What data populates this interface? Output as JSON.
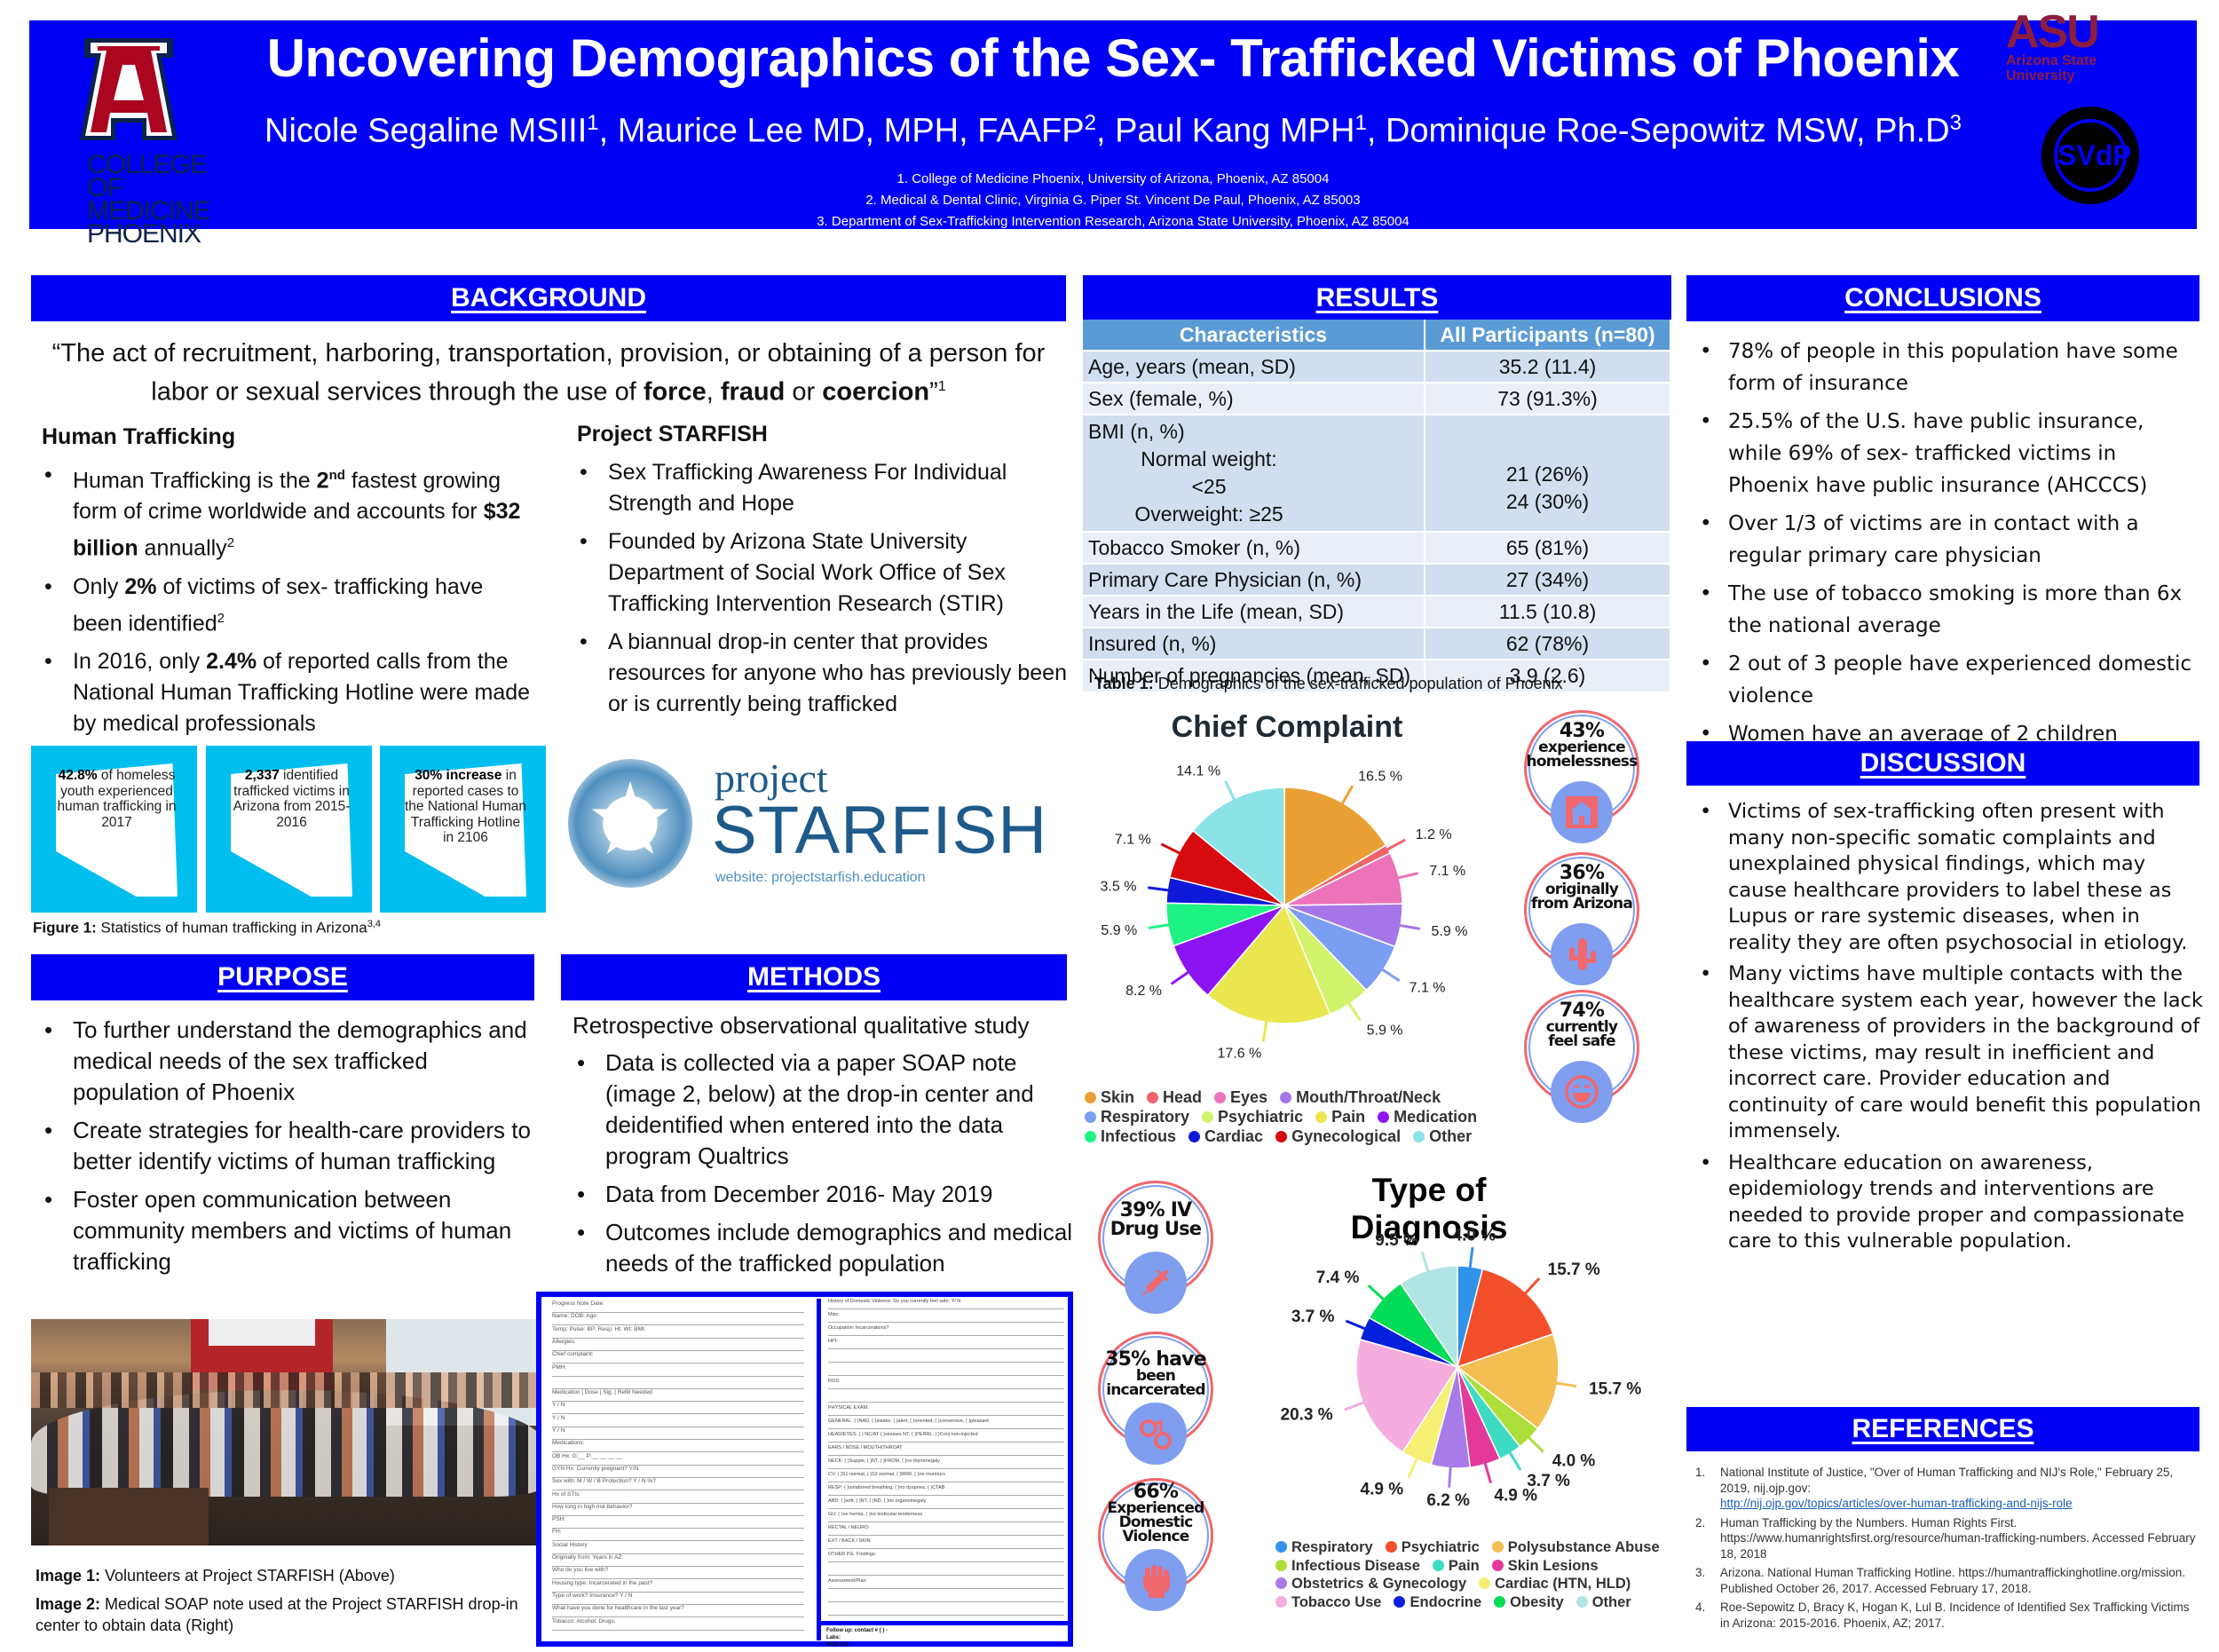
{
  "header": {
    "title": "Uncovering Demographics of the Sex- Trafficked Victims of Phoenix",
    "authors": [
      {
        "name": "Nicole Segaline MSIII",
        "sup": "1"
      },
      {
        "name": "Maurice Lee MD, MPH, FAAFP",
        "sup": "2"
      },
      {
        "name": "Paul Kang MPH",
        "sup": "1"
      },
      {
        "name": "Dominique Roe-Sepowitz MSW, Ph.D",
        "sup": "3"
      }
    ],
    "affiliations": [
      "1. College of Medicine Phoenix, University of Arizona, Phoenix, AZ 85004",
      "2. Medical & Dental Clinic, Virginia G. Piper St. Vincent De Paul, Phoenix, AZ 85003",
      "3. Department of Sex-Trafficking Intervention Research, Arizona  State University, Phoenix, AZ 85004"
    ],
    "logos": {
      "ua_letter": "A",
      "ua_college": [
        "COLLEGE",
        "OF MEDICINE",
        "PHOENIX"
      ],
      "asu_word": "ASU",
      "asu_name": [
        "Arizona State",
        "University"
      ],
      "svdp": "SVdP"
    }
  },
  "background": {
    "heading": "BACKGROUND",
    "quote_pre": "“The act of recruitment, harboring, transportation, provision, or obtaining of a person for labor or sexual services through the use of ",
    "quote_b1": "force",
    "quote_mid1": ", ",
    "quote_b2": "fraud",
    "quote_mid2": " or ",
    "quote_b3": "coercion",
    "quote_end": "”",
    "quote_sup": "1",
    "human_trafficking": {
      "title": "Human Trafficking",
      "items": [
        {
          "pre": "Human Trafficking is the ",
          "bold": "2",
          "sup": "nd",
          "post": " fastest growing form of crime worldwide and accounts for ",
          "bold2": "$32 billion",
          "post2": " annually",
          "sup2": "2"
        },
        {
          "pre": "Only ",
          "bold": "2%",
          "post": " of victims of sex- trafficking have been identified",
          "sup2": "2"
        },
        {
          "pre": "In 2016, only ",
          "bold": "2.4%",
          "post": " of reported calls from the National Human Trafficking Hotline were made by medical professionals"
        }
      ]
    },
    "project_starfish": {
      "title": "Project STARFISH",
      "items": [
        "Sex Trafficking Awareness For Individual Strength and Hope",
        "Founded by Arizona State University Department of Social Work Office of Sex Trafficking Intervention Research (STIR)",
        "A biannual drop-in center that provides resources for anyone who has previously been or is currently being trafficked"
      ]
    },
    "tiles": [
      {
        "bold": "42.8%",
        "text": " of homeless youth experienced human trafficking in 2017"
      },
      {
        "bold": "2,337",
        "text": " identified trafficked victims in Arizona from 2015-2016"
      },
      {
        "bold": "30% increase",
        "text": " in reported cases to the National Human Trafficking Hotline in 2106"
      }
    ],
    "figure_caption_bold": "Figure 1:",
    "figure_caption": " Statistics of human trafficking in Arizona",
    "figure_caption_sup": "3,4",
    "starfish_logo": {
      "project": "project",
      "starfish": "STARFISH",
      "website": "website: projectstarfish.education"
    }
  },
  "purpose": {
    "heading": "PURPOSE",
    "items": [
      "To further understand the demographics and medical needs of the sex trafficked population of Phoenix",
      "Create strategies for health-care providers to better identify victims of human trafficking",
      "Foster open communication between community members and victims of human trafficking"
    ]
  },
  "methods": {
    "heading": "METHODS",
    "intro": "Retrospective observational qualitative study",
    "items": [
      "Data is collected via a paper SOAP note (image 2, below) at the drop-in center and deidentified when entered into the data program Qualtrics",
      "Data from December 2016- May 2019",
      "Outcomes include demographics and medical needs of the trafficked population"
    ]
  },
  "images": {
    "cap1_bold": "Image 1:",
    "cap1": " Volunteers at Project STARFISH (Above)",
    "cap2_bold": "Image 2:",
    "cap2": " Medical SOAP note used at the Project STARFISH drop-in center to obtain data (Right)"
  },
  "soap_note": {
    "left_fields": [
      "Progress Note                    Date:",
      "Name:                                DOB:          Age:",
      "Temp:    Pulse:    BP:      Resp:     Ht:     Wt:     BMI:",
      "Allergies:",
      "Chief complaint:",
      "PMH:",
      "",
      "Medication | Dose | Sig. | Refill Needed",
      "Y / N",
      "Y / N",
      "Y / N",
      "Medications:",
      "OB Hx:  G:__ P:__ __ __ __",
      "GYN Hx:                          Currently pregnant? Y/N",
      "Sex with: M / W / B         Protection? Y / N      %?",
      "Hx of STIs:",
      "How long in high risk behavior?",
      "PSH:",
      "FH:",
      "Social History",
      "Originally from:                          Years in AZ:",
      "Who do you live with?",
      "Housing type:               Incarcerated in the past?",
      "Type of work?                Insurance? Y / N",
      "What have you done for healthcare in the last year?",
      "Tobacco:           Alcohol:              Drugs:"
    ],
    "right_fields": [
      "History of Domestic Violence:          Do you currently feel safe: Y/ N",
      "Misc:",
      "Occupation:                  Incarcerations?",
      "HPI:",
      "",
      "",
      "ROS:",
      "",
      "PHYSICAL EXAM:",
      "GENERAL: ( )NAD, ( )awake, ( )alert, ( )oriented, ( )conversive, ( )pleasant",
      "HEAD/EYES: ( ) NC/AT ( )sinuses NT, ( )PERRL, ( )Conj non-injected",
      "EARS / NOSE / MOUTH/THROAT",
      "NECK: ( )Supple, ( )NT, ( )FROM, ( )no thyromegaly",
      "CV: ( )S1 normal, ( )S2 normal, ( )RRR, ( )no murmurs",
      "RESP: ( )unlabored breathing, ( )no dyspnea, ( )CTAB",
      "ABD: ( )soft, ( )NT, ( )ND, ( )no organomegaly",
      "GU: ( )no hernia, ( )no testicular tenderness",
      "RECTAL / NEURO",
      "EXT / BACK / SKIN",
      "OTHER P.E. Findings:",
      "",
      "Assessment/Plan:",
      "",
      ""
    ],
    "follow_up": "Follow up:                                   contact # (     )     -",
    "labs": "Labs:",
    "wish_list": "Wish list:"
  },
  "results": {
    "heading": "RESULTS",
    "table": {
      "headers": [
        "Characteristics",
        "All Participants (n=80)"
      ],
      "rows": [
        {
          "label": "Age, years (mean, SD)",
          "value": "35.2 (11.4)"
        },
        {
          "label": "Sex (female, %)",
          "value": "73 (91.3%)"
        },
        {
          "label": "BMI (n, %)",
          "sub": [
            {
              "label": "Normal weight: <25",
              "value": "21 (26%)"
            },
            {
              "label": "Overweight: ≥25",
              "value": "24 (30%)"
            }
          ]
        },
        {
          "label": "Tobacco Smoker (n, %)",
          "value": "65 (81%)"
        },
        {
          "label": "Primary Care Physician (n, %)",
          "value": "27 (34%)"
        },
        {
          "label": "Years in the Life (mean, SD)",
          "value": "11.5 (10.8)"
        },
        {
          "label": "Insured (n, %)",
          "value": "62 (78%)"
        },
        {
          "label": "Number of pregnancies (mean, SD)",
          "value": "3.9 (2.6)"
        }
      ]
    },
    "table_caption_bold": "Table 1:",
    "table_caption": " Demographics of the sex-trafficked population of Phoenix",
    "badges_right": [
      {
        "pct": "43%",
        "text": [
          "experience",
          "homelessness"
        ],
        "icon": "house-icon"
      },
      {
        "pct": "36%",
        "text": [
          "originally",
          "from Arizona"
        ],
        "icon": "cactus-icon"
      },
      {
        "pct": "74%",
        "text": [
          "currently",
          "feel safe"
        ],
        "icon": "smiley-icon"
      }
    ],
    "badges_left": [
      {
        "pct": "39% IV",
        "text": [
          "Drug Use"
        ],
        "icon": "syringe-icon"
      },
      {
        "pct": "35% have",
        "text": [
          "been",
          "incarcerated"
        ],
        "icon": "handcuffs-icon"
      },
      {
        "pct": "66%",
        "text": [
          "Experienced",
          "Domestic",
          "Violence"
        ],
        "icon": "fist-icon"
      }
    ]
  },
  "chart_data": [
    {
      "type": "pie",
      "title": "Chief Complaint",
      "categories": [
        "Skin",
        "Head",
        "Eyes",
        "Mouth/Throat/Neck",
        "Respiratory",
        "Psychiatric",
        "Pain",
        "Medication",
        "Infectious",
        "Cardiac",
        "Gynecological",
        "Other"
      ],
      "values": [
        16.5,
        1.2,
        7.1,
        5.9,
        7.1,
        5.9,
        17.6,
        8.2,
        5.9,
        3.5,
        7.1,
        14.1
      ],
      "colors": [
        "#eba035",
        "#f0636a",
        "#ec72ba",
        "#a676e8",
        "#7c9ef2",
        "#d2f36c",
        "#ebe650",
        "#8d14f2",
        "#1ef283",
        "#0f1ad8",
        "#d60a0f",
        "#8be3e6"
      ],
      "unit": "%",
      "legend_position": "bottom"
    },
    {
      "type": "pie",
      "title": "Type of Diagnosis",
      "categories": [
        "Respiratory",
        "Psychiatric",
        "Polysubstance Abuse",
        "Infectious Disease",
        "Pain",
        "Skin Lesions",
        "Obstetrics & Gynecology",
        "Cardiac (HTN, HLD)",
        "Tobacco Use",
        "Endocrine",
        "Obesity",
        "Other"
      ],
      "values": [
        4.0,
        15.7,
        15.7,
        4.0,
        3.7,
        4.9,
        6.2,
        4.9,
        20.3,
        3.7,
        7.4,
        9.5
      ],
      "colors": [
        "#3192ea",
        "#f44f2b",
        "#f3bf53",
        "#addf3a",
        "#3ddbc4",
        "#e3399b",
        "#a97be8",
        "#f6ef74",
        "#f5ade0",
        "#0420dc",
        "#04dc57",
        "#b1e5e4"
      ],
      "unit": "%",
      "legend_position": "bottom"
    }
  ],
  "conclusions": {
    "heading": "CONCLUSIONS",
    "items": [
      "78% of people in this population have some form of insurance",
      "25.5% of the U.S. have public insurance, while 69% of sex- trafficked victims in Phoenix have public insurance (AHCCCS)",
      "Over 1/3 of victims are in contact with a regular primary care physician",
      "The use of tobacco smoking is more than 6x the national average",
      "2 out of 3 people have experienced domestic violence",
      "Women have an average of 2 children"
    ]
  },
  "discussion": {
    "heading": "DISCUSSION",
    "items": [
      "Victims of sex-trafficking often present with many non-specific somatic complaints and unexplained physical findings, which may cause healthcare providers to label these as Lupus or rare systemic diseases, when in reality they are often psychosocial in etiology.",
      "Many victims have multiple contacts with the healthcare system each year, however the lack of awareness of providers in the background of these victims, may result in inefficient and incorrect care. Provider education and continuity of care would benefit this population immensely.",
      "Healthcare education on awareness, epidemiology trends and interventions are needed to provide proper and compassionate care to this vulnerable population."
    ]
  },
  "references": {
    "heading": "REFERENCES",
    "items": [
      {
        "n": "1.",
        "text": "National Institute of Justice, \"Over of Human Trafficking and NIJ's Role,\" February 25, 2019, nij.ojp.gov:",
        "link": "http://nij.ojp.gov/topics/articles/over-human-trafficking-and-nijs-role"
      },
      {
        "n": "2.",
        "text": "Human Trafficking by the Numbers. Human Rights First. https://www.humanrightsfirst.org/resource/human-trafficking-numbers. Accessed February 18, 2018"
      },
      {
        "n": "3.",
        "text": " Arizona. National Human Trafficking Hotline. https://humantraffickinghotline.org/mission. Published October 26, 2017. Accessed February 17, 2018."
      },
      {
        "n": "4.",
        "text": "Roe-Sepowitz D, Bracy K, Hogan K, Lul B. Incidence of Identified Sex Trafficking Victims in Arizona: 2015-2016. Phoenix, AZ; 2017."
      }
    ]
  }
}
